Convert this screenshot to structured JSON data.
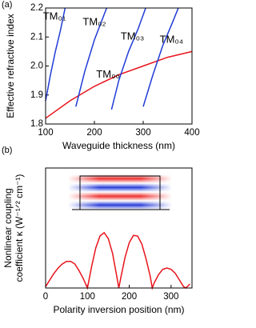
{
  "chart_data": [
    {
      "type": "line",
      "label": "(a)",
      "xlabel": "Waveguide thickness (nm)",
      "ylabel": [
        "Effective refractive index"
      ],
      "xlim": [
        100,
        400
      ],
      "xticks": [
        100,
        200,
        300,
        400
      ],
      "ylim": [
        1.8,
        2.2
      ],
      "yticks": [
        1.8,
        1.9,
        {
          "value": 2,
          "label": "2.0"
        },
        2.1,
        2.2
      ],
      "series": [
        {
          "name": "TM₀₀",
          "color": "#e8141c",
          "x": [
            100,
            150,
            200,
            250,
            300,
            350,
            400
          ],
          "values": [
            1.82,
            1.88,
            1.93,
            1.97,
            2.0,
            2.03,
            2.05
          ]
        },
        {
          "name": "TM₀₁",
          "color": "#1f3bd6",
          "x": [
            100,
            110,
            120,
            130,
            140
          ],
          "values": [
            1.88,
            1.97,
            2.05,
            2.12,
            2.2
          ]
        },
        {
          "name": "TM₀₂",
          "color": "#1f3bd6",
          "x": [
            162,
            180,
            200,
            225
          ],
          "values": [
            1.86,
            1.98,
            2.09,
            2.2
          ]
        },
        {
          "name": "TM₀₃",
          "color": "#1f3bd6",
          "x": [
            235,
            250,
            270,
            290,
            305
          ],
          "values": [
            1.85,
            1.95,
            2.05,
            2.13,
            2.2
          ]
        },
        {
          "name": "TM₀₄",
          "color": "#1f3bd6",
          "x": [
            300,
            320,
            340,
            360,
            372
          ],
          "values": [
            1.86,
            1.97,
            2.07,
            2.15,
            2.2
          ]
        }
      ]
    },
    {
      "type": "line",
      "label": "(b)",
      "xlabel": "Polarity inversion position (nm)",
      "ylabel": [
        "Nonlinear coupling",
        "coefficient κ (W⁻¹ᐟ² cm⁻¹)"
      ],
      "xlim": [
        0,
        350
      ],
      "xticks": [
        0,
        100,
        200,
        300
      ],
      "ylim": [
        0,
        9
      ],
      "series": [
        {
          "color": "#e8141c",
          "x": [
            0,
            10,
            20,
            30,
            40,
            50,
            60,
            70,
            80,
            90,
            100,
            110,
            120,
            130,
            140,
            150,
            160,
            170,
            175,
            180,
            190,
            200,
            210,
            220,
            230,
            240,
            250,
            255,
            260,
            270,
            280,
            290,
            300,
            310,
            320,
            330,
            335,
            345
          ],
          "values": [
            0.1,
            0.6,
            1.1,
            1.5,
            1.8,
            2.0,
            2.0,
            1.8,
            1.3,
            0.7,
            0,
            1.6,
            3.0,
            3.9,
            4.15,
            3.7,
            2.6,
            0.9,
            0,
            0.8,
            2.3,
            3.4,
            3.95,
            3.9,
            3.3,
            2.2,
            0.9,
            0,
            0.4,
            1.0,
            1.4,
            1.5,
            1.4,
            1.1,
            0.6,
            0.1,
            0,
            0.3
          ]
        }
      ]
    }
  ]
}
